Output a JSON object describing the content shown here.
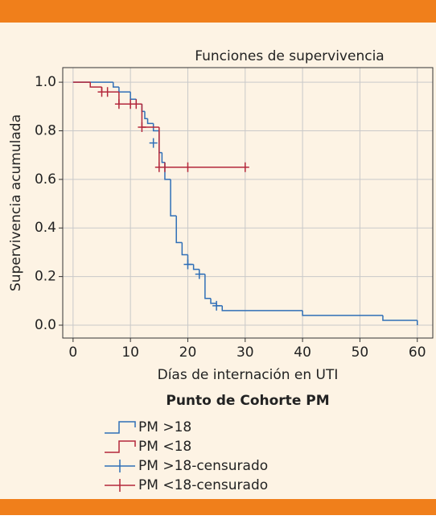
{
  "chart_data": {
    "type": "step",
    "title": "Funciones de supervivencia",
    "x_label": "Días de internación en UTI",
    "y_label": "Supervivencia acumulada",
    "legend_title": "Punto de Cohorte PM",
    "xlim": [
      -1.8,
      62.7
    ],
    "ylim": [
      -0.053,
      1.06
    ],
    "xticks": [
      0,
      10,
      20,
      30,
      40,
      50,
      60
    ],
    "yticks": [
      {
        "value": 0,
        "label": "0.0"
      },
      {
        "value": 0.2,
        "label": "0.2"
      },
      {
        "value": 0.4,
        "label": "0.4"
      },
      {
        "value": 0.6,
        "label": "0.6"
      },
      {
        "value": 0.8,
        "label": "0.8"
      },
      {
        "value": 1,
        "label": "1.0"
      }
    ],
    "grid": true,
    "series": [
      {
        "name": "PM >18",
        "color": "#2f6fb7",
        "x": [
          0,
          7,
          8,
          10,
          11,
          12,
          12.5,
          13,
          14,
          15,
          15.5,
          16,
          17,
          18,
          19,
          20,
          21,
          22,
          23,
          24,
          25,
          26,
          40,
          54,
          60
        ],
        "values": [
          1,
          0.98,
          0.96,
          0.93,
          0.91,
          0.88,
          0.85,
          0.83,
          0.8,
          0.71,
          0.67,
          0.6,
          0.45,
          0.34,
          0.29,
          0.25,
          0.23,
          0.21,
          0.11,
          0.09,
          0.08,
          0.06,
          0.04,
          0.02,
          0
        ]
      },
      {
        "name": "PM <18",
        "color": "#b3273b",
        "x": [
          0,
          3,
          5,
          8,
          12,
          15,
          30
        ],
        "values": [
          1,
          0.98,
          0.96,
          0.91,
          0.815,
          0.65,
          0.65
        ]
      }
    ],
    "censored": [
      {
        "name": "PM >18-censurado",
        "color": "#2f6fb7",
        "x": [
          14,
          20,
          22,
          25
        ],
        "values": [
          0.75,
          0.25,
          0.21,
          0.08
        ]
      },
      {
        "name": "PM <18-censurado",
        "color": "#b3273b",
        "x": [
          5,
          6,
          8,
          10,
          11,
          12,
          15,
          16,
          20,
          30
        ],
        "values": [
          0.96,
          0.96,
          0.91,
          0.91,
          0.91,
          0.815,
          0.65,
          0.65,
          0.65,
          0.65
        ]
      }
    ]
  }
}
